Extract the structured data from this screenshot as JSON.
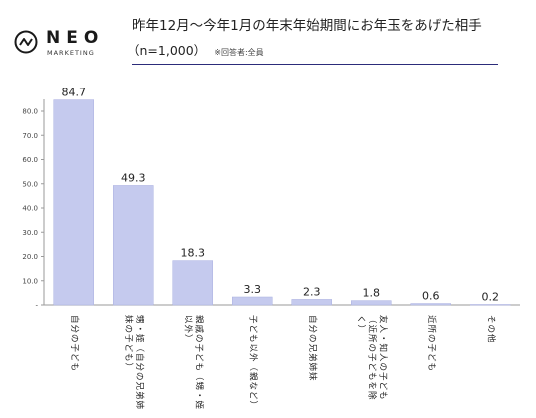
{
  "logo": {
    "word": "NEO",
    "sub": "MARKETING"
  },
  "title": "昨年12月〜今年1月の年末年始期間にお年玉をあげた相手",
  "subtitle": "（n=1,000）",
  "note": "※回答者:全員",
  "colors": {
    "bar": "#c5caee",
    "bar_border": "#aab0e0",
    "axis": "#9a9a9a",
    "rule": "#2c2c7a"
  },
  "chart_data": {
    "type": "bar",
    "categories": [
      "自分の子ども",
      "甥・姪（自分の兄弟姉妹の子ども）",
      "親戚の子ども（甥・姪以外）",
      "子ども以外（親など）",
      "自分の兄弟姉妹",
      "友人・知人の子ども（近所の子どもを除く）",
      "近所の子ども",
      "その他"
    ],
    "category_lines": [
      [
        "自分の子ども"
      ],
      [
        "甥・姪（自分の兄弟姉",
        "妹の子ども）"
      ],
      [
        "親戚の子ども（甥・姪",
        "以外）"
      ],
      [
        "子ども以外（親など）"
      ],
      [
        "自分の兄弟姉妹"
      ],
      [
        "友人・知人の子ども",
        "（近所の子どもを除",
        "く）"
      ],
      [
        "近所の子ども"
      ],
      [
        "その他"
      ]
    ],
    "values": [
      84.7,
      49.3,
      18.3,
      3.3,
      2.3,
      1.8,
      0.6,
      0.2
    ],
    "value_labels": [
      "84.7",
      "49.3",
      "18.3",
      "3.3",
      "2.3",
      "1.8",
      "0.6",
      "0.2"
    ],
    "ylim": [
      0,
      80
    ],
    "yticks": [
      80,
      70,
      60,
      50,
      40,
      30,
      20,
      10,
      0
    ],
    "ytick_labels": [
      "80.0",
      "70.0",
      "60.0",
      "50.0",
      "40.0",
      "30.0",
      "20.0",
      "10.0",
      "-"
    ]
  }
}
